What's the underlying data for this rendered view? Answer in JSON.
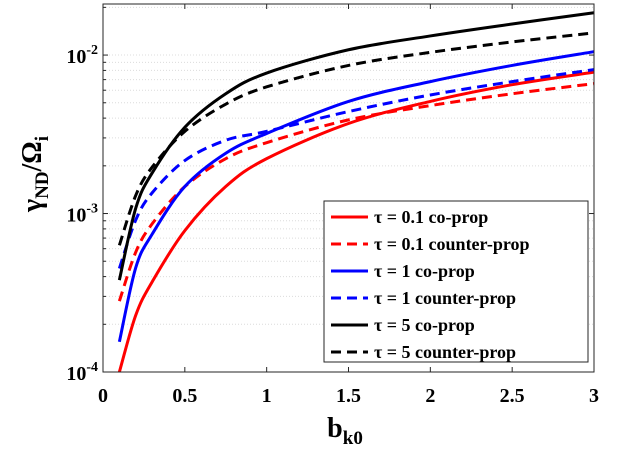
{
  "chart_data": {
    "type": "line",
    "title": "",
    "xlabel": "b",
    "xlabel_sub": "k0",
    "ylabel": "γ",
    "ylabel_sub": "ND",
    "ylabel_mid": "/Ω",
    "ylabel_sub2": "i",
    "xlim": [
      0,
      3
    ],
    "ylim": [
      0.0001,
      0.021
    ],
    "yscale": "log",
    "grid": "minor-dotted",
    "legend_position": "bottom-right",
    "x_ticks": [
      {
        "value": 0,
        "label": "0"
      },
      {
        "value": 0.5,
        "label": "0.5"
      },
      {
        "value": 1,
        "label": "1"
      },
      {
        "value": 1.5,
        "label": "1.5"
      },
      {
        "value": 2,
        "label": "2"
      },
      {
        "value": 2.5,
        "label": "2.5"
      },
      {
        "value": 3,
        "label": "3"
      }
    ],
    "y_ticks": [
      {
        "value": 0.0001,
        "base": "10",
        "exp": "-4"
      },
      {
        "value": 0.001,
        "base": "10",
        "exp": "-3"
      },
      {
        "value": 0.01,
        "base": "10",
        "exp": "-2"
      }
    ],
    "x": [
      0.1,
      0.2,
      0.3,
      0.5,
      0.75,
      1.0,
      1.5,
      2.0,
      2.5,
      3.0
    ],
    "series": [
      {
        "name": "τ = 0.1 co-prop",
        "color": "#ff0000",
        "dash": "solid",
        "values": [
          0.0001,
          0.000228,
          0.00037,
          0.00078,
          0.00148,
          0.00222,
          0.0037,
          0.0051,
          0.0065,
          0.0078
        ]
      },
      {
        "name": "τ = 0.1 counter-prop",
        "color": "#ff0000",
        "dash": "dashed",
        "values": [
          0.00028,
          0.00057,
          0.00086,
          0.00148,
          0.00222,
          0.0028,
          0.0039,
          0.0048,
          0.0057,
          0.0066
        ]
      },
      {
        "name": "τ = 1 co-prop",
        "color": "#0000ff",
        "dash": "solid",
        "values": [
          0.000155,
          0.000455,
          0.00074,
          0.00148,
          0.0024,
          0.0032,
          0.0051,
          0.0068,
          0.0086,
          0.0105
        ]
      },
      {
        "name": "τ = 1 counter-prop",
        "color": "#0000ff",
        "dash": "dashed",
        "values": [
          0.00045,
          0.00091,
          0.00135,
          0.00216,
          0.0029,
          0.0033,
          0.0044,
          0.0056,
          0.0068,
          0.0081
        ]
      },
      {
        "name": "τ = 5 co-prop",
        "color": "#000000",
        "dash": "solid",
        "values": [
          0.00038,
          0.00108,
          0.0018,
          0.0035,
          0.0057,
          0.0077,
          0.0108,
          0.0132,
          0.0157,
          0.0185
        ]
      },
      {
        "name": "τ = 5 counter-prop",
        "color": "#000000",
        "dash": "dashed",
        "values": [
          0.00063,
          0.0013,
          0.00196,
          0.0033,
          0.0049,
          0.0063,
          0.0086,
          0.0104,
          0.0121,
          0.0138
        ]
      }
    ]
  }
}
